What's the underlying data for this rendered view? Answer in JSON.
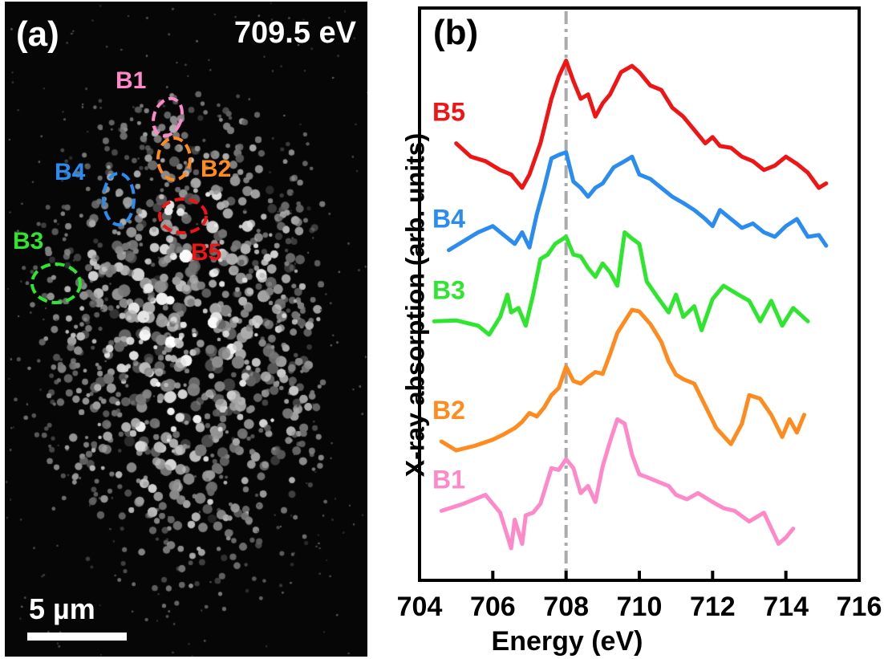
{
  "panel_a": {
    "label": "(a)",
    "energy": "709.5 eV",
    "scale_bar": "5 µm",
    "regions": [
      {
        "name": "B1",
        "color": "#ff88c8"
      },
      {
        "name": "B2",
        "color": "#ff8a1e"
      },
      {
        "name": "B3",
        "color": "#2ee62e"
      },
      {
        "name": "B4",
        "color": "#2a8cf0"
      },
      {
        "name": "B5",
        "color": "#f01414"
      }
    ]
  },
  "panel_b": {
    "label": "(b)"
  },
  "chart_data": {
    "type": "line",
    "xlabel": "Energy (eV)",
    "ylabel": "X-ray absorption (arb. units)",
    "xlim": [
      704,
      716
    ],
    "xticks": [
      "704",
      "706",
      "708",
      "710",
      "712",
      "714",
      "716"
    ],
    "ylim": [
      0,
      5.8
    ],
    "y_ticks_shown": false,
    "reference_line_x": 708,
    "series": [
      {
        "name": "B1",
        "color": "#ff88c8",
        "x": [
          704.6,
          705.2,
          705.8,
          706.2,
          706.5,
          706.6,
          706.8,
          706.9,
          707.1,
          707.3,
          707.6,
          707.8,
          708.0,
          708.2,
          708.4,
          708.6,
          708.8,
          709.0,
          709.2,
          709.4,
          709.6,
          709.8,
          710.0,
          710.2,
          710.5,
          710.8,
          711.0,
          711.3,
          711.6,
          712.0,
          712.3,
          712.6,
          713.0,
          713.4,
          713.8,
          714.0,
          714.2
        ],
        "y": [
          0.42,
          0.5,
          0.6,
          0.4,
          0.0,
          0.32,
          0.05,
          0.37,
          0.4,
          0.5,
          0.9,
          0.88,
          1.0,
          0.9,
          0.62,
          0.7,
          0.52,
          0.92,
          1.2,
          1.45,
          1.4,
          1.05,
          0.83,
          0.8,
          0.75,
          0.7,
          0.6,
          0.55,
          0.62,
          0.52,
          0.45,
          0.42,
          0.3,
          0.4,
          0.05,
          0.12,
          0.22
        ]
      },
      {
        "name": "B2",
        "color": "#ff8a1e",
        "x": [
          704.6,
          705.0,
          705.5,
          706.0,
          706.3,
          706.6,
          706.8,
          707.0,
          707.2,
          707.4,
          707.6,
          707.8,
          708.0,
          708.2,
          708.4,
          708.6,
          708.8,
          709.0,
          709.2,
          709.4,
          709.6,
          709.8,
          710.0,
          710.3,
          710.6,
          710.8,
          711.0,
          711.2,
          711.5,
          711.8,
          712.1,
          712.5,
          712.8,
          713.0,
          713.3,
          713.6,
          713.9,
          714.1,
          714.3,
          714.5
        ],
        "y": [
          1.2,
          1.1,
          1.15,
          1.22,
          1.28,
          1.35,
          1.42,
          1.52,
          1.48,
          1.58,
          1.72,
          1.8,
          2.04,
          1.88,
          1.85,
          1.92,
          1.98,
          1.96,
          2.18,
          2.42,
          2.55,
          2.68,
          2.66,
          2.52,
          2.32,
          2.1,
          1.95,
          1.9,
          1.85,
          1.6,
          1.35,
          1.17,
          1.4,
          1.72,
          1.68,
          1.5,
          1.25,
          1.45,
          1.3,
          1.5
        ]
      },
      {
        "name": "B3",
        "color": "#2ee62e",
        "x": [
          704.4,
          705.0,
          705.6,
          705.9,
          706.2,
          706.4,
          706.5,
          706.7,
          706.9,
          707.1,
          707.3,
          707.5,
          707.7,
          708.0,
          708.2,
          708.4,
          708.6,
          708.8,
          709.0,
          709.2,
          709.4,
          709.6,
          709.8,
          710.0,
          710.2,
          710.5,
          710.8,
          711.0,
          711.2,
          711.5,
          711.7,
          712.0,
          712.3,
          712.7,
          713.0,
          713.3,
          713.6,
          713.9,
          714.2,
          714.6
        ],
        "y": [
          2.55,
          2.56,
          2.5,
          2.4,
          2.6,
          2.85,
          2.65,
          2.7,
          2.5,
          2.85,
          3.25,
          3.3,
          3.42,
          3.5,
          3.3,
          3.28,
          3.15,
          3.05,
          3.2,
          3.1,
          2.95,
          3.55,
          3.48,
          3.42,
          3.0,
          2.82,
          2.65,
          2.85,
          2.6,
          2.72,
          2.45,
          2.8,
          2.95,
          2.85,
          2.78,
          2.55,
          2.78,
          2.5,
          2.7,
          2.55
        ]
      },
      {
        "name": "B4",
        "color": "#2a8cf0",
        "x": [
          704.8,
          705.2,
          705.6,
          706.0,
          706.3,
          706.6,
          706.8,
          707.0,
          707.2,
          707.4,
          707.6,
          707.8,
          708.0,
          708.2,
          708.4,
          708.6,
          708.8,
          709.0,
          709.3,
          709.6,
          709.8,
          710.0,
          710.3,
          710.6,
          710.9,
          711.2,
          711.5,
          711.8,
          712.0,
          712.2,
          712.5,
          712.8,
          713.1,
          713.4,
          713.7,
          714.0,
          714.3,
          714.6,
          714.9,
          715.1
        ],
        "y": [
          3.35,
          3.45,
          3.55,
          3.62,
          3.52,
          3.42,
          3.55,
          3.38,
          3.75,
          4.05,
          4.38,
          4.42,
          4.45,
          4.12,
          4.05,
          3.95,
          4.05,
          4.1,
          4.28,
          4.35,
          4.4,
          4.2,
          4.15,
          4.05,
          3.95,
          3.88,
          3.8,
          3.7,
          3.62,
          3.8,
          3.7,
          3.6,
          3.65,
          3.55,
          3.5,
          3.62,
          3.7,
          3.5,
          3.52,
          3.4
        ]
      },
      {
        "name": "B5",
        "color": "#f01414",
        "x": [
          705.0,
          705.4,
          705.8,
          706.2,
          706.5,
          706.8,
          707.0,
          707.3,
          707.6,
          707.8,
          708.0,
          708.2,
          708.4,
          708.6,
          708.8,
          709.0,
          709.2,
          709.5,
          709.8,
          710.0,
          710.3,
          710.6,
          710.9,
          711.2,
          711.5,
          711.8,
          712.0,
          712.2,
          712.5,
          712.8,
          713.1,
          713.4,
          713.7,
          714.0,
          714.3,
          714.6,
          714.9,
          715.1
        ],
        "y": [
          4.55,
          4.4,
          4.35,
          4.25,
          4.2,
          4.05,
          4.2,
          4.55,
          5.05,
          5.3,
          5.48,
          5.25,
          5.05,
          5.1,
          4.85,
          5.0,
          5.1,
          5.35,
          5.42,
          5.35,
          5.2,
          5.15,
          4.95,
          4.85,
          4.7,
          4.55,
          4.62,
          4.52,
          4.5,
          4.4,
          4.35,
          4.25,
          4.3,
          4.4,
          4.32,
          4.22,
          4.05,
          4.1
        ]
      }
    ]
  }
}
